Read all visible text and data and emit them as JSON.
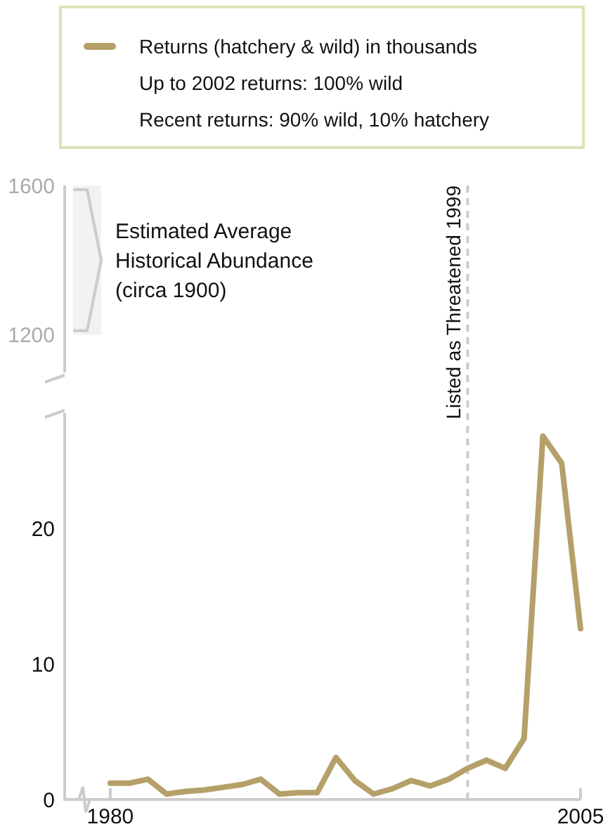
{
  "chart_data": [
    {
      "type": "line",
      "xlim": [
        1977.5,
        2005
      ],
      "ylim": [
        1100,
        1600
      ],
      "yticks": [
        1200,
        1600
      ],
      "tick_labels": "y",
      "bands": [
        {
          "axis": "y",
          "from": 1200,
          "to": 1600,
          "label": "Estimated Average Historical Abundance (circa 1900)",
          "color": "#cccccc"
        }
      ]
    },
    {
      "type": "line",
      "xlim": [
        1977.5,
        2005
      ],
      "xticks": [
        1980,
        2005
      ],
      "ylim": [
        0,
        28.5
      ],
      "yticks": [
        0,
        10,
        20
      ],
      "legend": "top",
      "line_style": "solid",
      "series": [
        {
          "name": "Returns (hatchery & wild) in thousands",
          "color": "#b5a06a",
          "x": [
            1980,
            1981,
            1982,
            1983,
            1984,
            1985,
            1986,
            1987,
            1988,
            1989,
            1990,
            1991,
            1992,
            1993,
            1994,
            1995,
            1996,
            1997,
            1998,
            1999,
            2000,
            2001,
            2002,
            2003,
            2004,
            2005
          ],
          "values": [
            1.2,
            1.2,
            1.5,
            0.4,
            0.6,
            0.7,
            0.9,
            1.1,
            1.5,
            0.4,
            0.5,
            0.5,
            3.1,
            1.4,
            0.4,
            0.8,
            1.4,
            1.0,
            1.5,
            2.3,
            2.9,
            2.3,
            4.5,
            26.8,
            24.8,
            12.6
          ]
        }
      ],
      "ref_lines": [
        {
          "axis": "x",
          "value": 1999,
          "label": "Listed as Threatened 1999",
          "color": "#cccccc",
          "line_style": "dashed"
        }
      ],
      "annotations": [
        "Up to 2002 returns:  100% wild",
        "Recent returns:  90% wild, 10% hatchery"
      ]
    }
  ]
}
